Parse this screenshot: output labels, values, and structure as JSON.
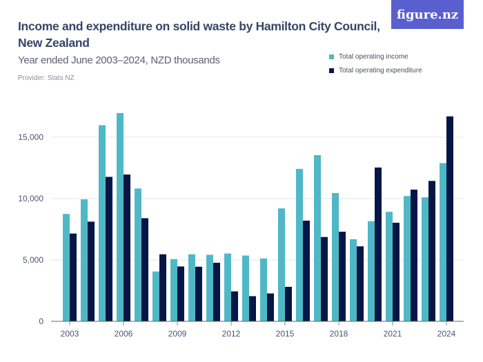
{
  "header": {
    "title": "Income and expenditure on solid waste by Hamilton City Council, New Zealand",
    "subtitle": "Year ended June 2003–2024, NZD thousands",
    "provider": "Provider: Stats NZ",
    "logo": "figure.nz"
  },
  "chart_data": {
    "type": "bar",
    "title": "Income and expenditure on solid waste by Hamilton City Council, New Zealand",
    "subtitle": "Year ended June 2003–2024, NZD thousands",
    "categories": [
      "2003",
      "2004",
      "2005",
      "2006",
      "2007",
      "2008",
      "2009",
      "2010",
      "2011",
      "2012",
      "2013",
      "2014",
      "2015",
      "2016",
      "2017",
      "2018",
      "2019",
      "2020",
      "2021",
      "2022",
      "2023",
      "2024"
    ],
    "x_tick_labels": [
      "2003",
      "2006",
      "2009",
      "2012",
      "2015",
      "2018",
      "2021",
      "2024"
    ],
    "y_ticks": [
      0,
      5000,
      10000,
      15000
    ],
    "y_tick_labels": [
      "0",
      "5,000",
      "10,000",
      "15,000"
    ],
    "ylim": [
      0,
      17500
    ],
    "grid": true,
    "legend_position": "top-right",
    "series": [
      {
        "name": "Total operating income",
        "color": "#4fb8c6",
        "values": [
          8750,
          9940,
          15980,
          16970,
          10820,
          4060,
          5070,
          5460,
          5420,
          5530,
          5360,
          5120,
          9200,
          12420,
          13540,
          10450,
          6690,
          8160,
          8920,
          10210,
          10100,
          12890
        ]
      },
      {
        "name": "Total operating expenditure",
        "color": "#041645",
        "values": [
          7150,
          8120,
          11770,
          11960,
          8400,
          5460,
          4470,
          4450,
          4770,
          2440,
          2050,
          2270,
          2810,
          8200,
          6870,
          7300,
          6110,
          12530,
          8030,
          10730,
          11440,
          16700
        ]
      }
    ]
  }
}
